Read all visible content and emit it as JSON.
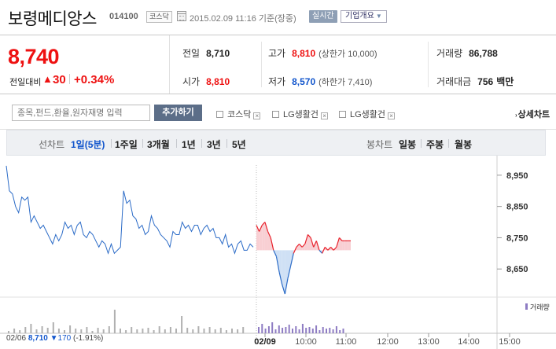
{
  "header": {
    "company_name": "보령메디앙스",
    "code": "014100",
    "market": "코스닥",
    "datetime": "2015.02.09 11:16 기준(장중)",
    "realtime": "실시간",
    "company_info": "기업개요"
  },
  "summary": {
    "price": "8,740",
    "prev_label": "전일대비",
    "change": "30",
    "change_pct": "+0.34%",
    "prev_close": {
      "label": "전일",
      "value": "8,710"
    },
    "high": {
      "label": "고가",
      "value": "8,810",
      "sub": "(상한가 10,000)"
    },
    "volume": {
      "label": "거래량",
      "value": "86,788"
    },
    "open": {
      "label": "시가",
      "value": "8,810"
    },
    "low": {
      "label": "저가",
      "value": "8,570",
      "sub": "(하한가 7,410)"
    },
    "amount": {
      "label": "거래대금",
      "value": "756",
      "unit": "백만"
    }
  },
  "compare": {
    "placeholder": "종목,펀드,환율,원자재명 입력",
    "add_label": "추가하기",
    "items": [
      "코스닥",
      "LG생활건",
      "LG생활건"
    ],
    "detail_label": "상세차트"
  },
  "period": {
    "line_label": "선차트",
    "line_items": [
      "1일(5분)",
      "1주일",
      "3개월",
      "1년",
      "3년",
      "5년"
    ],
    "active": "1일(5분)",
    "candle_label": "봉차트",
    "candle_items": [
      "일봉",
      "주봉",
      "월봉"
    ]
  },
  "chart_data": {
    "type": "line",
    "y_ticks": [
      "8,950",
      "8,850",
      "8,750",
      "8,650"
    ],
    "x_ticks": [
      "02/09",
      "10:00",
      "11:00",
      "12:00",
      "13:00",
      "14:00",
      "15:00"
    ],
    "ylim": [
      8560,
      9000
    ],
    "prev_close": 8710,
    "volume_label": "거래량",
    "series": [
      {
        "values": [
          8980,
          8900,
          8890,
          8850,
          8830,
          8880,
          8870,
          8880,
          8800,
          8820,
          8800,
          8780,
          8790,
          8770,
          8750,
          8730,
          8760,
          8740,
          8760,
          8800,
          8780,
          8790,
          8760,
          8790,
          8800,
          8760,
          8750,
          8770,
          8760,
          8740,
          8720,
          8740,
          8730,
          8700,
          8730,
          8700,
          8710,
          8720,
          8900,
          8860,
          8870,
          8820,
          8810,
          8780,
          8790,
          8760,
          8770,
          8820,
          8790,
          8780,
          8760,
          8750,
          8740,
          8720,
          8770,
          8760,
          8760,
          8800,
          8780,
          8790,
          8770,
          8790,
          8790,
          8760,
          8780,
          8790,
          8770,
          8780,
          8750,
          8750,
          8730,
          8760,
          8720,
          8730,
          8700,
          8730,
          8740,
          8710,
          8710,
          8730,
          8720
        ]
      },
      {
        "values": [
          8790,
          8770,
          8790,
          8800,
          8770,
          8750,
          8710,
          8690,
          8640,
          8600,
          8570,
          8620,
          8660,
          8700,
          8720,
          8730,
          8720,
          8730,
          8760,
          8750,
          8720,
          8740,
          8710,
          8700,
          8720,
          8710,
          8720,
          8710,
          8720,
          8750,
          8740,
          8740,
          8740,
          8740
        ]
      }
    ],
    "prev_day": {
      "date": "02/06",
      "close": "8,710",
      "change": "170",
      "change_pct": "(-1.91%)"
    }
  }
}
